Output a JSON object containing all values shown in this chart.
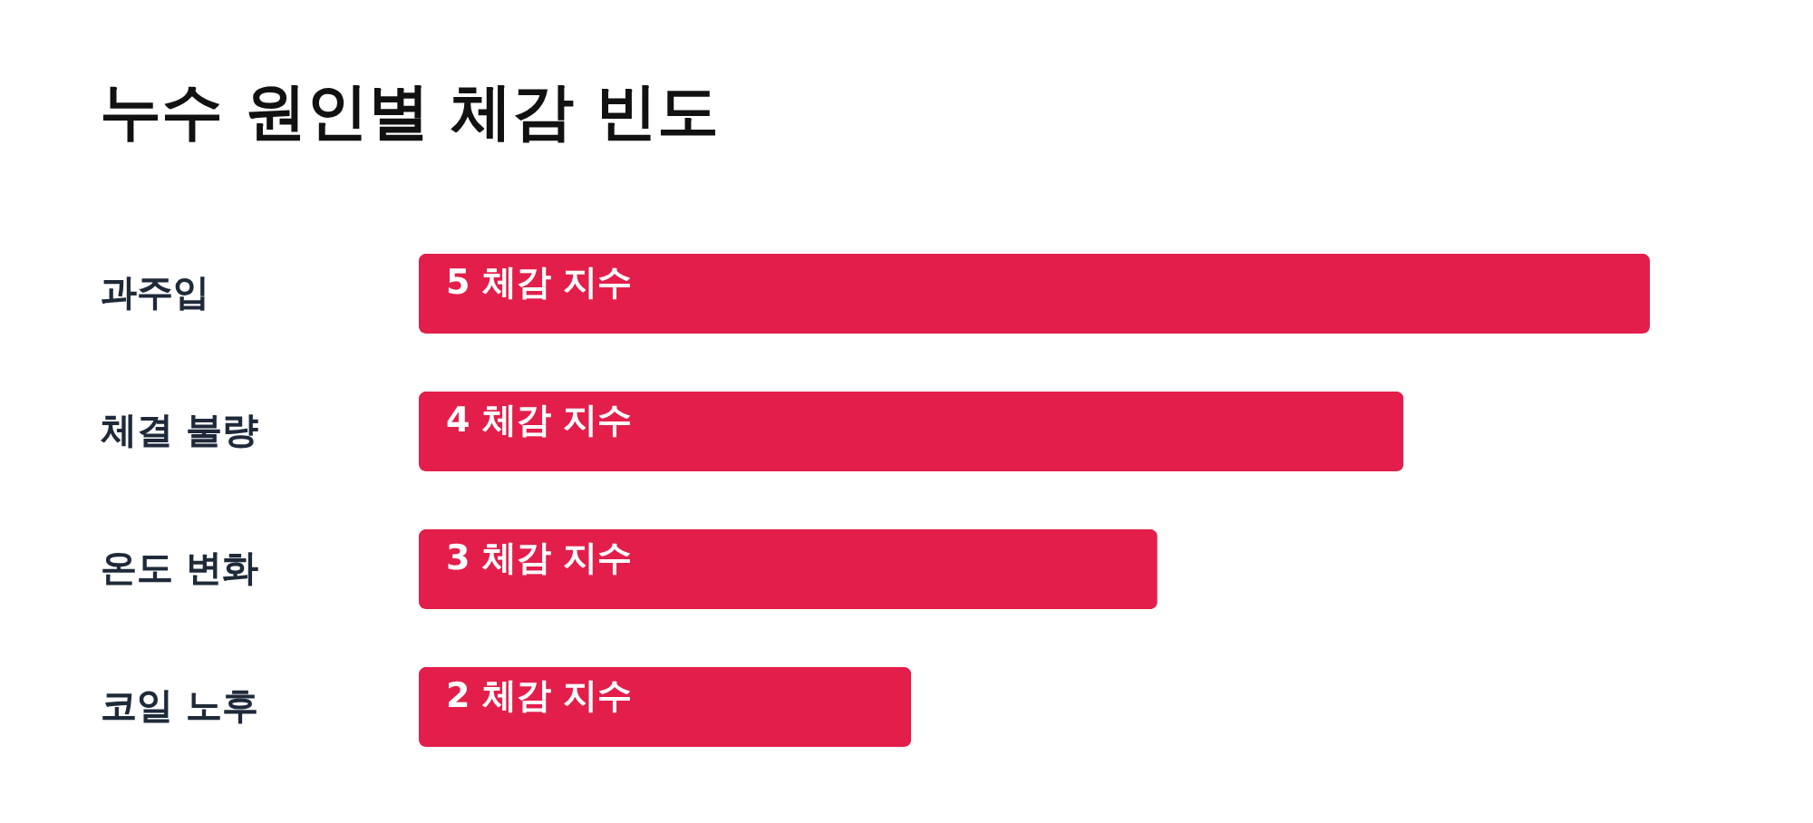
{
  "chart_data": {
    "type": "bar",
    "orientation": "horizontal",
    "title": "누수 원인별 체감 빈도",
    "categories": [
      "과주입",
      "체결 불량",
      "온도 변화",
      "코일 노후"
    ],
    "values": [
      5,
      4,
      3,
      2
    ],
    "value_labels": [
      "5 체감 지수",
      "4 체감 지수",
      "3 체감 지수",
      "2 체감 지수"
    ],
    "color": "#e31e4a",
    "xlim": [
      0,
      5
    ],
    "tick_labels": "y"
  }
}
